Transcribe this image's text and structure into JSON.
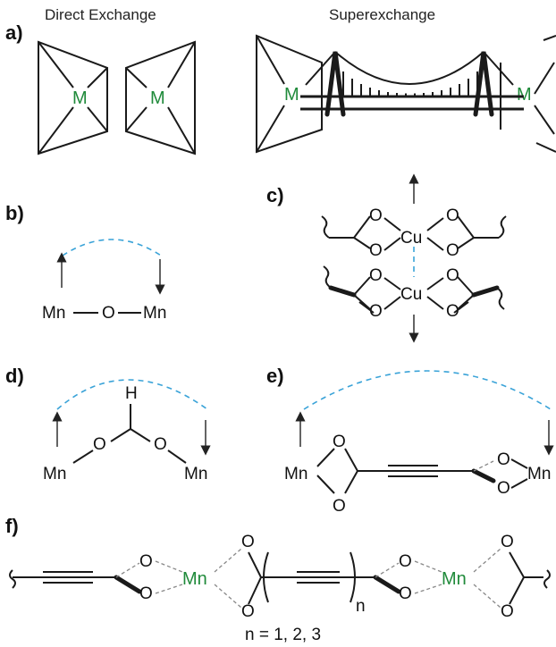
{
  "labels": {
    "a": "a)",
    "b": "b)",
    "c": "c)",
    "d": "d)",
    "e": "e)",
    "f": "f)"
  },
  "titles": {
    "direct": "Direct Exchange",
    "super": "Superexchange"
  },
  "atoms": {
    "M": "M",
    "Mn": "Mn",
    "O": "O",
    "Cu": "Cu",
    "H": "H",
    "n": "n"
  },
  "caption": "n = 1, 2, 3",
  "colors": {
    "metal": "#1f8a3a",
    "coupling": "#3aa3d8"
  }
}
